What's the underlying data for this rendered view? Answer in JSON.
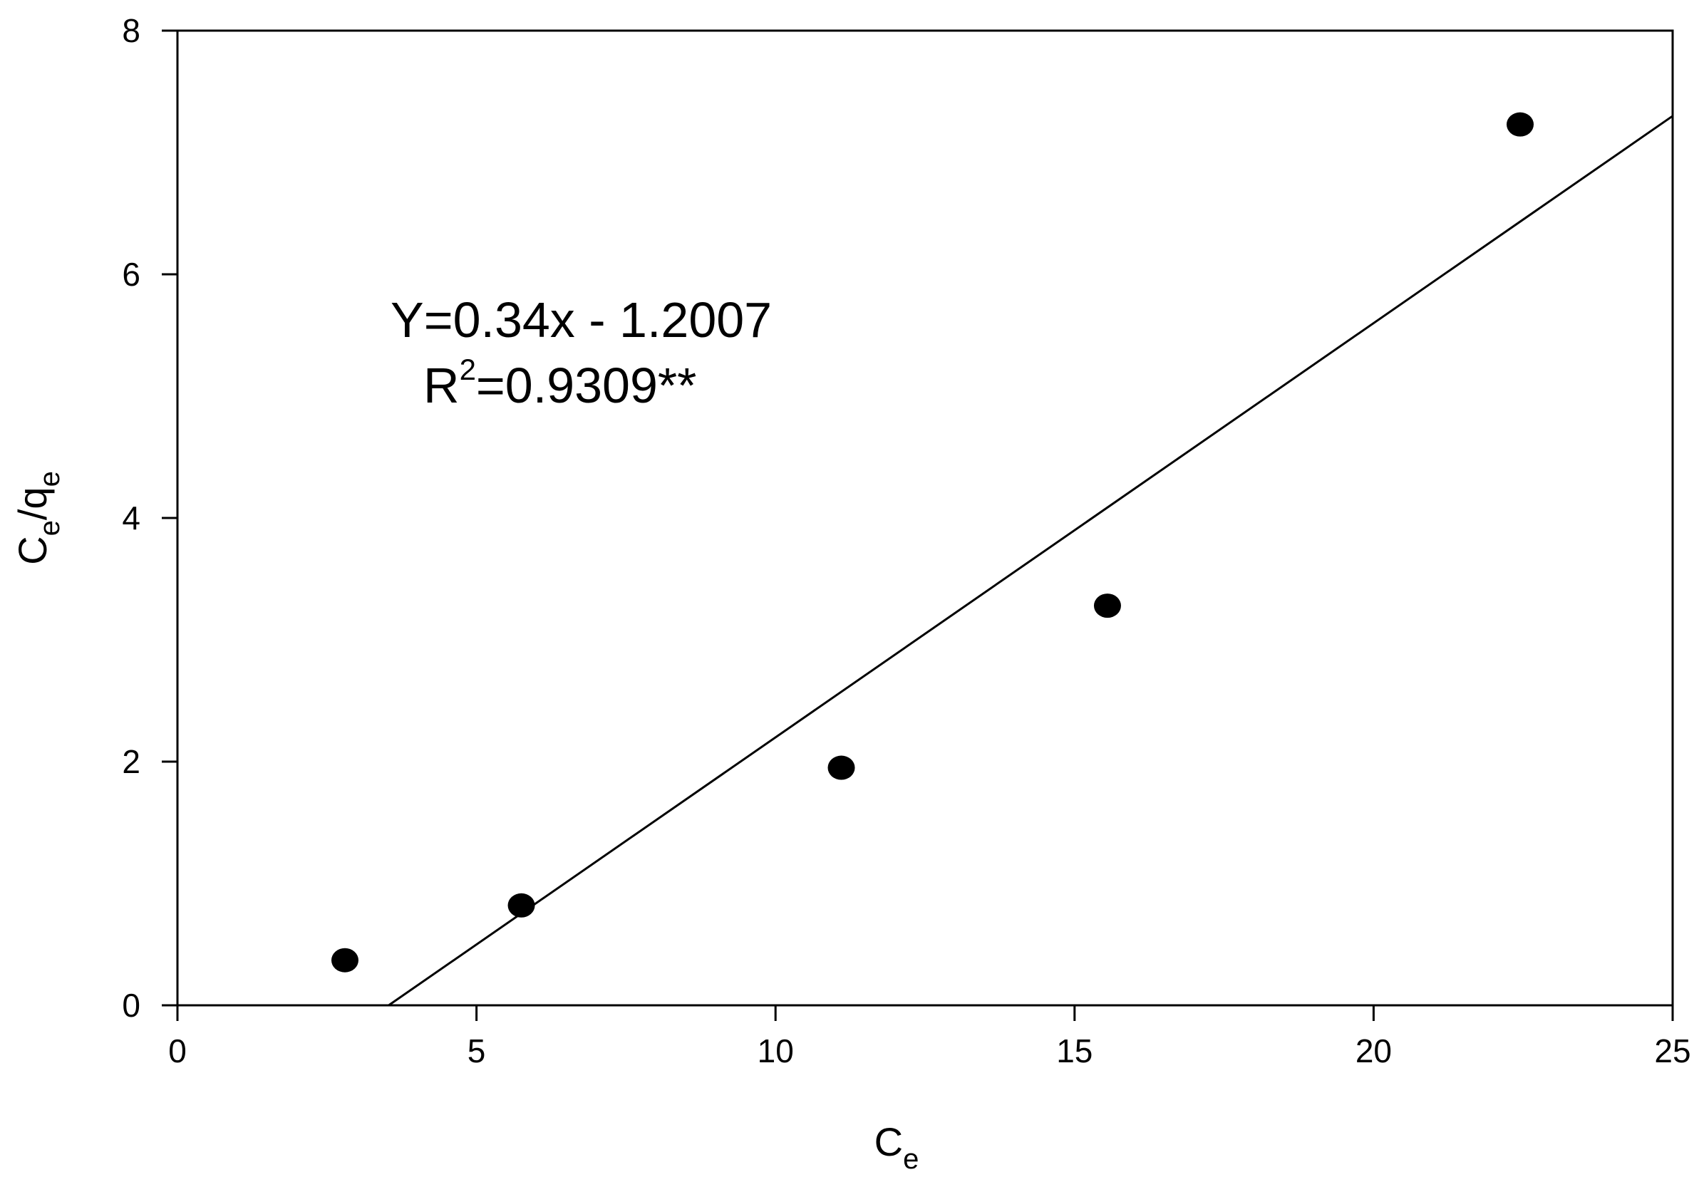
{
  "chart_data": {
    "type": "scatter",
    "xlabel": {
      "main": "C",
      "sub": "e"
    },
    "ylabel": {
      "main1": "C",
      "sub1": "e",
      "sep": "/q",
      "sub2": "e"
    },
    "xlim": [
      0,
      25
    ],
    "ylim": [
      0,
      8
    ],
    "xticks": [
      "0",
      "5",
      "10",
      "15",
      "20",
      "25"
    ],
    "yticks": [
      "0",
      "2",
      "4",
      "6",
      "8"
    ],
    "grid": false,
    "points": [
      {
        "x": 2.8,
        "y": 0.37
      },
      {
        "x": 5.75,
        "y": 0.82
      },
      {
        "x": 11.1,
        "y": 1.95
      },
      {
        "x": 15.55,
        "y": 3.28
      },
      {
        "x": 22.45,
        "y": 7.23
      }
    ],
    "fit_line": {
      "slope": 0.34,
      "intercept": -1.2007
    },
    "annotation": {
      "equation": "Y=0.34x - 1.2007",
      "r2_prefix": "R",
      "r2_exponent": "2",
      "r2_value": "=0.9309**"
    },
    "colors": {
      "marker": "#000000",
      "line": "#000000",
      "axes": "#000000"
    }
  }
}
